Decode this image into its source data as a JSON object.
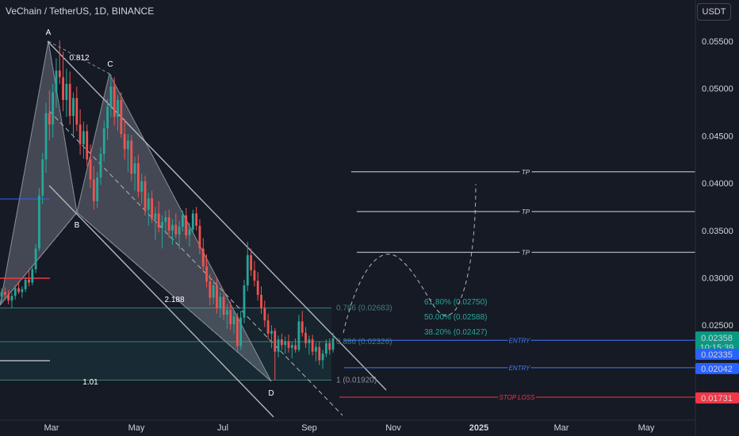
{
  "header": {
    "symbol_title": "VeChain / TetherUS, 1D, BINANCE",
    "currency_button": "USDT"
  },
  "chart_data": {
    "type": "candlestick",
    "symbol": "VeChain / TetherUS",
    "interval": "1D",
    "exchange": "BINANCE",
    "currency": "USDT",
    "y_ticks": [
      "0.05500",
      "0.05000",
      "0.04500",
      "0.04000",
      "0.03500",
      "0.03000",
      "0.02500"
    ],
    "x_ticks": [
      {
        "label": "Mar",
        "bold": false
      },
      {
        "label": "May",
        "bold": false
      },
      {
        "label": "Jul",
        "bold": false
      },
      {
        "label": "Sep",
        "bold": false
      },
      {
        "label": "Nov",
        "bold": false
      },
      {
        "label": "2025",
        "bold": true
      },
      {
        "label": "Mar",
        "bold": false
      },
      {
        "label": "May",
        "bold": false
      }
    ],
    "harmonic_points": [
      {
        "label": "A",
        "value": 0.0551
      },
      {
        "label": "B",
        "value": 0.0372
      },
      {
        "label": "C",
        "value": 0.0515
      },
      {
        "label": "D",
        "value": 0.0192
      }
    ],
    "pattern_ratios": [
      "0.812",
      "2.188",
      "1.01"
    ],
    "fib_levels": [
      {
        "label": "0.786 (0.02683)",
        "value": 0.02683
      },
      {
        "label": "0.886 (0.02326)",
        "value": 0.02326
      },
      {
        "label": "1 (0.01920)",
        "value": 0.0192
      }
    ],
    "retracements": [
      {
        "label": "61.80% (0.02750)",
        "value": 0.0275
      },
      {
        "label": "50.00% (0.02588)",
        "value": 0.02588
      },
      {
        "label": "38.20% (0.02427)",
        "value": 0.02427
      }
    ],
    "level_lines": [
      {
        "label": "TP",
        "value": 0.0412,
        "color": "#d1d4dc"
      },
      {
        "label": "TP",
        "value": 0.037,
        "color": "#d1d4dc"
      },
      {
        "label": "TP",
        "value": 0.0327,
        "color": "#d1d4dc"
      },
      {
        "label": "ENTRY",
        "value": 0.0234,
        "color": "#3d7bff"
      },
      {
        "label": "ENTRY",
        "value": 0.0205,
        "color": "#3d7bff"
      },
      {
        "label": "STOP LOSS",
        "value": 0.0174,
        "color": "#f23645"
      }
    ],
    "price_badges": [
      {
        "text": "0.02358",
        "sub": "10:15:39",
        "color": "#089981"
      },
      {
        "text": "0.02335",
        "color": "#2962ff"
      },
      {
        "text": "0.02042",
        "color": "#2962ff"
      },
      {
        "text": "0.01731",
        "color": "#f23645"
      }
    ],
    "candles": [
      {
        "o": 0.028,
        "h": 0.0289,
        "l": 0.0274,
        "c": 0.0285
      },
      {
        "o": 0.0285,
        "h": 0.029,
        "l": 0.0278,
        "c": 0.0282
      },
      {
        "o": 0.0282,
        "h": 0.0287,
        "l": 0.0272,
        "c": 0.0276
      },
      {
        "o": 0.0276,
        "h": 0.0284,
        "l": 0.0268,
        "c": 0.0281
      },
      {
        "o": 0.0281,
        "h": 0.0292,
        "l": 0.0277,
        "c": 0.0289
      },
      {
        "o": 0.0289,
        "h": 0.0296,
        "l": 0.0283,
        "c": 0.0285
      },
      {
        "o": 0.0285,
        "h": 0.0291,
        "l": 0.0279,
        "c": 0.0288
      },
      {
        "o": 0.0288,
        "h": 0.0301,
        "l": 0.0285,
        "c": 0.0298
      },
      {
        "o": 0.0298,
        "h": 0.0308,
        "l": 0.0291,
        "c": 0.0295
      },
      {
        "o": 0.0295,
        "h": 0.0312,
        "l": 0.0292,
        "c": 0.0309
      },
      {
        "o": 0.0309,
        "h": 0.0336,
        "l": 0.0305,
        "c": 0.0331
      },
      {
        "o": 0.0331,
        "h": 0.0395,
        "l": 0.0328,
        "c": 0.0387
      },
      {
        "o": 0.0387,
        "h": 0.0432,
        "l": 0.0378,
        "c": 0.0425
      },
      {
        "o": 0.0425,
        "h": 0.0485,
        "l": 0.0411,
        "c": 0.0474
      },
      {
        "o": 0.0474,
        "h": 0.0498,
        "l": 0.0445,
        "c": 0.0462
      },
      {
        "o": 0.0462,
        "h": 0.0505,
        "l": 0.0448,
        "c": 0.0496
      },
      {
        "o": 0.0496,
        "h": 0.0532,
        "l": 0.048,
        "c": 0.0519
      },
      {
        "o": 0.0519,
        "h": 0.0551,
        "l": 0.0505,
        "c": 0.0512
      },
      {
        "o": 0.0512,
        "h": 0.0539,
        "l": 0.0476,
        "c": 0.0488
      },
      {
        "o": 0.0488,
        "h": 0.0521,
        "l": 0.047,
        "c": 0.0505
      },
      {
        "o": 0.0505,
        "h": 0.0518,
        "l": 0.0462,
        "c": 0.0471
      },
      {
        "o": 0.0471,
        "h": 0.0496,
        "l": 0.0448,
        "c": 0.049
      },
      {
        "o": 0.049,
        "h": 0.0502,
        "l": 0.0455,
        "c": 0.0462
      },
      {
        "o": 0.0462,
        "h": 0.0478,
        "l": 0.043,
        "c": 0.0441
      },
      {
        "o": 0.0441,
        "h": 0.0465,
        "l": 0.0426,
        "c": 0.0455
      },
      {
        "o": 0.0455,
        "h": 0.0462,
        "l": 0.0418,
        "c": 0.0425
      },
      {
        "o": 0.0425,
        "h": 0.0441,
        "l": 0.0395,
        "c": 0.0404
      },
      {
        "o": 0.0404,
        "h": 0.0418,
        "l": 0.0372,
        "c": 0.0381
      },
      {
        "o": 0.0381,
        "h": 0.0412,
        "l": 0.0374,
        "c": 0.0406
      },
      {
        "o": 0.0406,
        "h": 0.0438,
        "l": 0.0398,
        "c": 0.0431
      },
      {
        "o": 0.0431,
        "h": 0.0466,
        "l": 0.0423,
        "c": 0.0458
      },
      {
        "o": 0.0458,
        "h": 0.0489,
        "l": 0.0446,
        "c": 0.0481
      },
      {
        "o": 0.0481,
        "h": 0.0515,
        "l": 0.047,
        "c": 0.0502
      },
      {
        "o": 0.0502,
        "h": 0.0512,
        "l": 0.0461,
        "c": 0.047
      },
      {
        "o": 0.047,
        "h": 0.0493,
        "l": 0.0455,
        "c": 0.0488
      },
      {
        "o": 0.0488,
        "h": 0.0496,
        "l": 0.0448,
        "c": 0.0452
      },
      {
        "o": 0.0452,
        "h": 0.0468,
        "l": 0.0425,
        "c": 0.0436
      },
      {
        "o": 0.0436,
        "h": 0.0452,
        "l": 0.0412,
        "c": 0.0445
      },
      {
        "o": 0.0445,
        "h": 0.0451,
        "l": 0.0402,
        "c": 0.041
      },
      {
        "o": 0.041,
        "h": 0.0428,
        "l": 0.0392,
        "c": 0.0421
      },
      {
        "o": 0.0421,
        "h": 0.043,
        "l": 0.0385,
        "c": 0.0391
      },
      {
        "o": 0.0391,
        "h": 0.041,
        "l": 0.0378,
        "c": 0.0402
      },
      {
        "o": 0.0402,
        "h": 0.0408,
        "l": 0.0366,
        "c": 0.0372
      },
      {
        "o": 0.0372,
        "h": 0.039,
        "l": 0.0355,
        "c": 0.0384
      },
      {
        "o": 0.0384,
        "h": 0.0392,
        "l": 0.0358,
        "c": 0.0362
      },
      {
        "o": 0.0362,
        "h": 0.0375,
        "l": 0.034,
        "c": 0.0368
      },
      {
        "o": 0.0368,
        "h": 0.0381,
        "l": 0.0348,
        "c": 0.0353
      },
      {
        "o": 0.0353,
        "h": 0.0366,
        "l": 0.0331,
        "c": 0.0359
      },
      {
        "o": 0.0359,
        "h": 0.0371,
        "l": 0.0346,
        "c": 0.0364
      },
      {
        "o": 0.0364,
        "h": 0.0372,
        "l": 0.0342,
        "c": 0.035
      },
      {
        "o": 0.035,
        "h": 0.0362,
        "l": 0.0335,
        "c": 0.0356
      },
      {
        "o": 0.0356,
        "h": 0.0368,
        "l": 0.0342,
        "c": 0.0346
      },
      {
        "o": 0.0346,
        "h": 0.036,
        "l": 0.033,
        "c": 0.0354
      },
      {
        "o": 0.0354,
        "h": 0.0371,
        "l": 0.0349,
        "c": 0.0366
      },
      {
        "o": 0.0366,
        "h": 0.0374,
        "l": 0.0341,
        "c": 0.0345
      },
      {
        "o": 0.0345,
        "h": 0.0358,
        "l": 0.0333,
        "c": 0.0351
      },
      {
        "o": 0.0351,
        "h": 0.0372,
        "l": 0.0347,
        "c": 0.0368
      },
      {
        "o": 0.0368,
        "h": 0.0375,
        "l": 0.035,
        "c": 0.0355
      },
      {
        "o": 0.0355,
        "h": 0.0362,
        "l": 0.0325,
        "c": 0.0331
      },
      {
        "o": 0.0331,
        "h": 0.0342,
        "l": 0.0306,
        "c": 0.0312
      },
      {
        "o": 0.0312,
        "h": 0.0325,
        "l": 0.029,
        "c": 0.0296
      },
      {
        "o": 0.0296,
        "h": 0.0304,
        "l": 0.0271,
        "c": 0.0279
      },
      {
        "o": 0.0279,
        "h": 0.0298,
        "l": 0.0272,
        "c": 0.0292
      },
      {
        "o": 0.0292,
        "h": 0.0301,
        "l": 0.0262,
        "c": 0.0268
      },
      {
        "o": 0.0268,
        "h": 0.0285,
        "l": 0.0258,
        "c": 0.028
      },
      {
        "o": 0.028,
        "h": 0.0286,
        "l": 0.0255,
        "c": 0.0261
      },
      {
        "o": 0.0261,
        "h": 0.0272,
        "l": 0.0246,
        "c": 0.0266
      },
      {
        "o": 0.0266,
        "h": 0.0275,
        "l": 0.0245,
        "c": 0.0251
      },
      {
        "o": 0.0251,
        "h": 0.0266,
        "l": 0.0241,
        "c": 0.0259
      },
      {
        "o": 0.0259,
        "h": 0.0263,
        "l": 0.0221,
        "c": 0.0228
      },
      {
        "o": 0.0228,
        "h": 0.0265,
        "l": 0.0224,
        "c": 0.0258
      },
      {
        "o": 0.0258,
        "h": 0.0298,
        "l": 0.0252,
        "c": 0.0292
      },
      {
        "o": 0.0292,
        "h": 0.0338,
        "l": 0.0286,
        "c": 0.0324
      },
      {
        "o": 0.0324,
        "h": 0.0331,
        "l": 0.0302,
        "c": 0.0308
      },
      {
        "o": 0.0308,
        "h": 0.0318,
        "l": 0.0291,
        "c": 0.0297
      },
      {
        "o": 0.0297,
        "h": 0.0306,
        "l": 0.0276,
        "c": 0.0282
      },
      {
        "o": 0.0282,
        "h": 0.0291,
        "l": 0.0262,
        "c": 0.0268
      },
      {
        "o": 0.0268,
        "h": 0.0276,
        "l": 0.0248,
        "c": 0.0255
      },
      {
        "o": 0.0255,
        "h": 0.0262,
        "l": 0.0235,
        "c": 0.0241
      },
      {
        "o": 0.0241,
        "h": 0.025,
        "l": 0.0226,
        "c": 0.0244
      },
      {
        "o": 0.0244,
        "h": 0.0247,
        "l": 0.0192,
        "c": 0.0222
      },
      {
        "o": 0.0222,
        "h": 0.0239,
        "l": 0.0216,
        "c": 0.0235
      },
      {
        "o": 0.0235,
        "h": 0.0241,
        "l": 0.0224,
        "c": 0.0229
      },
      {
        "o": 0.0229,
        "h": 0.0238,
        "l": 0.022,
        "c": 0.0233
      },
      {
        "o": 0.0233,
        "h": 0.024,
        "l": 0.0221,
        "c": 0.0226
      },
      {
        "o": 0.0226,
        "h": 0.0232,
        "l": 0.0215,
        "c": 0.0229
      },
      {
        "o": 0.0229,
        "h": 0.0236,
        "l": 0.0221,
        "c": 0.0224
      },
      {
        "o": 0.0224,
        "h": 0.0261,
        "l": 0.0222,
        "c": 0.0254
      },
      {
        "o": 0.0254,
        "h": 0.0265,
        "l": 0.0238,
        "c": 0.0242
      },
      {
        "o": 0.0242,
        "h": 0.0248,
        "l": 0.0226,
        "c": 0.0231
      },
      {
        "o": 0.0231,
        "h": 0.0239,
        "l": 0.0219,
        "c": 0.0235
      },
      {
        "o": 0.0235,
        "h": 0.024,
        "l": 0.0218,
        "c": 0.0222
      },
      {
        "o": 0.0222,
        "h": 0.0231,
        "l": 0.0212,
        "c": 0.0227
      },
      {
        "o": 0.0227,
        "h": 0.0233,
        "l": 0.0208,
        "c": 0.0213
      },
      {
        "o": 0.0213,
        "h": 0.0224,
        "l": 0.0204,
        "c": 0.022
      },
      {
        "o": 0.022,
        "h": 0.0235,
        "l": 0.0216,
        "c": 0.0231
      },
      {
        "o": 0.0231,
        "h": 0.0236,
        "l": 0.0219,
        "c": 0.0224
      },
      {
        "o": 0.0224,
        "h": 0.0242,
        "l": 0.0221,
        "c": 0.0236
      }
    ]
  }
}
